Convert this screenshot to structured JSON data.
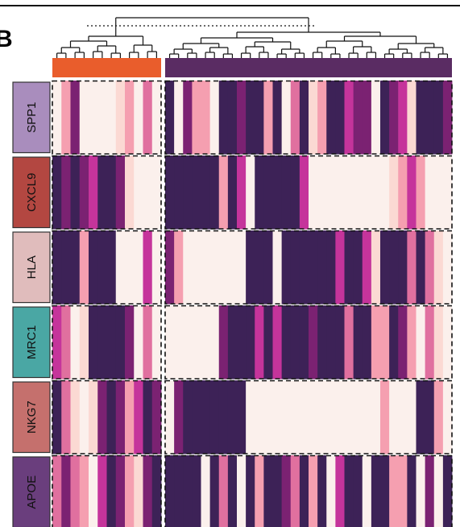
{
  "panel_letter": "B",
  "chart_data": {
    "type": "heatmap",
    "title": "",
    "xlabel": "",
    "ylabel": "",
    "colormap": [
      "#fbf0ec",
      "#fbd9d3",
      "#f59fb0",
      "#e0709f",
      "#c5349b",
      "#7b2272",
      "#3d2257"
    ],
    "value_range": [
      0,
      6
    ],
    "groups": [
      {
        "id": "group-1",
        "color": "#e95d2c",
        "n_columns": 12
      },
      {
        "id": "group-2",
        "color": "#5a2c63",
        "n_columns": 32
      }
    ],
    "rows": [
      {
        "label": "SPP1",
        "color": "#a98dbd",
        "values": [
          0,
          2,
          5,
          0,
          0,
          0,
          0,
          1,
          2,
          0,
          3,
          0,
          6,
          0,
          5,
          2,
          2,
          0,
          6,
          6,
          5,
          6,
          6,
          2,
          6,
          0,
          3,
          6,
          1,
          2,
          6,
          6,
          4,
          5,
          5,
          0,
          6,
          5,
          4,
          1,
          6,
          6,
          6,
          5
        ]
      },
      {
        "label": "CXCL9",
        "color": "#b34741",
        "values": [
          6,
          5,
          6,
          5,
          4,
          6,
          6,
          5,
          1,
          0,
          0,
          0,
          6,
          6,
          6,
          6,
          6,
          6,
          2,
          6,
          4,
          0,
          6,
          6,
          6,
          6,
          6,
          4,
          0,
          0,
          0,
          0,
          0,
          0,
          0,
          0,
          0,
          1,
          2,
          4,
          2,
          0,
          0,
          0
        ]
      },
      {
        "label": "HLA",
        "color": "#e0bcbc",
        "values": [
          6,
          6,
          6,
          2,
          6,
          6,
          6,
          0,
          0,
          0,
          4,
          0,
          5,
          2,
          0,
          0,
          0,
          0,
          0,
          0,
          0,
          6,
          6,
          6,
          0,
          6,
          6,
          6,
          6,
          6,
          6,
          4,
          6,
          6,
          4,
          1,
          6,
          6,
          6,
          3,
          6,
          3,
          1,
          0
        ]
      },
      {
        "label": "MRC1",
        "color": "#4aa7a4",
        "values": [
          4,
          3,
          0,
          1,
          6,
          6,
          6,
          6,
          5,
          0,
          3,
          0,
          0,
          0,
          0,
          0,
          0,
          0,
          5,
          6,
          6,
          6,
          4,
          6,
          4,
          6,
          6,
          6,
          5,
          6,
          6,
          6,
          3,
          6,
          6,
          2,
          2,
          6,
          5,
          2,
          0,
          3,
          1,
          0
        ]
      },
      {
        "label": "NKG7",
        "color": "#c5706d",
        "values": [
          6,
          3,
          1,
          0,
          1,
          5,
          6,
          5,
          2,
          4,
          6,
          5,
          0,
          5,
          6,
          6,
          6,
          6,
          6,
          6,
          6,
          0,
          0,
          0,
          0,
          0,
          0,
          0,
          0,
          0,
          0,
          0,
          0,
          0,
          0,
          0,
          2,
          0,
          0,
          0,
          6,
          6,
          2,
          0
        ]
      },
      {
        "label": "APOE",
        "color": "#6a3e7d",
        "values": [
          3,
          5,
          3,
          2,
          0,
          4,
          6,
          5,
          2,
          1,
          5,
          6,
          6,
          6,
          6,
          6,
          0,
          6,
          3,
          6,
          0,
          6,
          2,
          6,
          6,
          5,
          3,
          6,
          2,
          6,
          0,
          4,
          6,
          6,
          0,
          6,
          6,
          2,
          2,
          6,
          0,
          5,
          0,
          6
        ]
      }
    ]
  }
}
